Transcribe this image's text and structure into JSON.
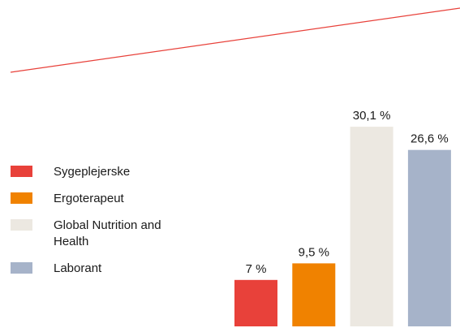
{
  "chart_data": {
    "type": "bar",
    "categories": [
      "Sygeplejerske",
      "Ergoterapeut",
      "Global Nutrition and Health",
      "Laborant"
    ],
    "values": [
      7,
      9.5,
      30.1,
      26.6
    ],
    "value_labels": [
      "7 %",
      "9,5 %",
      "30,1 %",
      "26,6 %"
    ],
    "colors": [
      "#e8413a",
      "#f08200",
      "#ece8e1",
      "#a6b3c9"
    ]
  }
}
